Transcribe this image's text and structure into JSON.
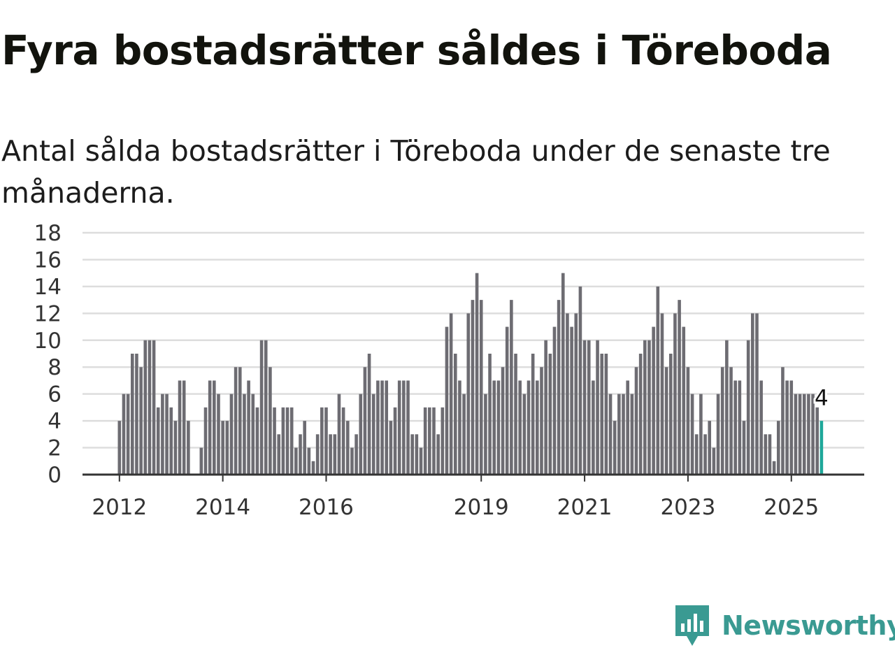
{
  "title": "Fyra bostadsrätter såldes i Töreboda",
  "subtitle": "Antal sålda bostadsrätter i Töreboda under de senaste tre månaderna.",
  "brand": {
    "name": "Newsworthy",
    "color": "#3a9a92"
  },
  "colors": {
    "bar": "#6d6c72",
    "highlight": "#1fa89a",
    "grid": "#dddddd",
    "axis": "#333333"
  },
  "chart_data": {
    "type": "bar",
    "title": "Fyra bostadsrätter såldes i Töreboda",
    "subtitle": "Antal sålda bostadsrätter i Töreboda under de senaste tre månaderna.",
    "xlabel": "",
    "ylabel": "",
    "ylim": [
      0,
      18
    ],
    "yticks": [
      0,
      2,
      4,
      6,
      8,
      10,
      12,
      14,
      16,
      18
    ],
    "x_tick_labels": [
      "2012",
      "2014",
      "2016",
      "2019",
      "2021",
      "2023",
      "2025"
    ],
    "start_month": "2012-01",
    "grid": true,
    "legend": "none",
    "values": [
      4,
      6,
      6,
      9,
      9,
      8,
      10,
      10,
      10,
      5,
      6,
      6,
      5,
      4,
      7,
      7,
      4,
      0,
      null,
      2,
      5,
      7,
      7,
      6,
      4,
      4,
      6,
      8,
      8,
      6,
      7,
      6,
      5,
      10,
      10,
      8,
      5,
      3,
      5,
      5,
      5,
      2,
      3,
      4,
      2,
      1,
      3,
      5,
      5,
      3,
      3,
      6,
      5,
      4,
      2,
      3,
      6,
      8,
      9,
      6,
      7,
      7,
      7,
      4,
      5,
      7,
      7,
      7,
      3,
      3,
      2,
      5,
      5,
      5,
      3,
      5,
      11,
      12,
      9,
      7,
      6,
      12,
      13,
      15,
      13,
      6,
      9,
      7,
      7,
      8,
      11,
      13,
      9,
      7,
      6,
      7,
      9,
      7,
      8,
      10,
      9,
      11,
      13,
      15,
      12,
      11,
      12,
      14,
      10,
      10,
      7,
      10,
      9,
      9,
      6,
      4,
      6,
      6,
      7,
      6,
      8,
      9,
      10,
      10,
      11,
      14,
      12,
      8,
      9,
      12,
      13,
      11,
      8,
      6,
      3,
      6,
      3,
      4,
      2,
      6,
      8,
      10,
      8,
      7,
      7,
      4,
      10,
      12,
      12,
      7,
      3,
      3,
      1,
      4,
      8,
      7,
      7,
      6,
      6,
      6,
      6,
      6,
      5,
      4
    ],
    "highlight_last": true,
    "annotation": {
      "label": "4"
    }
  }
}
